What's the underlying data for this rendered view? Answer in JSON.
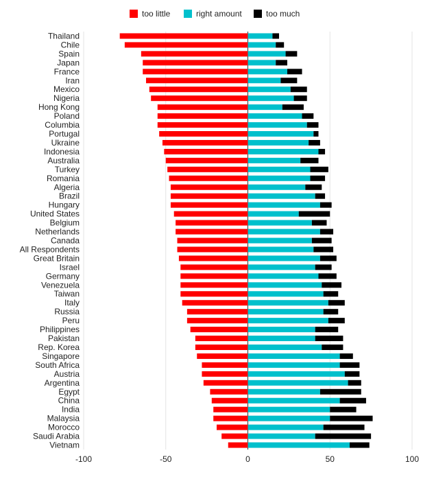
{
  "chart_data": {
    "type": "bar",
    "orientation": "horizontal",
    "stacked": "diverging",
    "legend_position": "top-center",
    "grid": true,
    "xlim": [
      -100,
      100
    ],
    "xticks": [
      -100,
      -50,
      0,
      50,
      100
    ],
    "tick_labels": [
      "-100",
      "-50",
      "0",
      "50",
      "100"
    ],
    "categories": [
      "Thailand",
      "Chile",
      "Spain",
      "Japan",
      "France",
      "Iran",
      "Mexico",
      "Nigeria",
      "Hong Kong",
      "Poland",
      "Columbia",
      "Portugal",
      "Ukraine",
      "Indonesia",
      "Australia",
      "Turkey",
      "Romania",
      "Algeria",
      "Brazil",
      "Hungary",
      "United States",
      "Belgium",
      "Netherlands",
      "Canada",
      "All Respondents",
      "Great Britain",
      "Israel",
      "Germany",
      "Venezuela",
      "Taiwan",
      "Italy",
      "Russia",
      "Peru",
      "Philippines",
      "Pakistan",
      "Rep. Korea",
      "Singapore",
      "South Africa",
      "Austria",
      "Argentina",
      "Egypt",
      "China",
      "India",
      "Malaysia",
      "Morocco",
      "Saudi Arabia",
      "Vietnam"
    ],
    "series": [
      {
        "name": "too little",
        "color": "#ff0000",
        "values": [
          -78,
          -75,
          -65,
          -64,
          -64,
          -62,
          -60,
          -59,
          -55,
          -55,
          -55,
          -54,
          -52,
          -51,
          -50,
          -49,
          -48,
          -47,
          -47,
          -47,
          -45,
          -44,
          -44,
          -43,
          -43,
          -42,
          -41,
          -41,
          -41,
          -41,
          -40,
          -37,
          -37,
          -35,
          -32,
          -32,
          -31,
          -28,
          -28,
          -27,
          -23,
          -22,
          -21,
          -21,
          -19,
          -16,
          -12
        ]
      },
      {
        "name": "right amount",
        "color": "#00c0cc",
        "values": [
          15,
          17,
          23,
          17,
          24,
          20,
          26,
          28,
          21,
          33,
          36,
          40,
          37,
          43,
          32,
          38,
          38,
          35,
          41,
          44,
          31,
          39,
          44,
          39,
          40,
          44,
          41,
          43,
          45,
          46,
          49,
          46,
          49,
          41,
          41,
          45,
          56,
          56,
          59,
          61,
          44,
          56,
          50,
          50,
          46,
          41,
          62
        ]
      },
      {
        "name": "too much",
        "color": "#000000",
        "values": [
          4,
          5,
          7,
          7,
          9,
          10,
          10,
          8,
          13,
          7,
          7,
          3,
          7,
          4,
          11,
          11,
          9,
          10,
          6,
          7,
          19,
          9,
          8,
          12,
          12,
          10,
          10,
          11,
          12,
          9,
          10,
          9,
          10,
          14,
          17,
          13,
          8,
          12,
          9,
          8,
          25,
          16,
          16,
          26,
          25,
          34,
          12
        ]
      }
    ]
  }
}
